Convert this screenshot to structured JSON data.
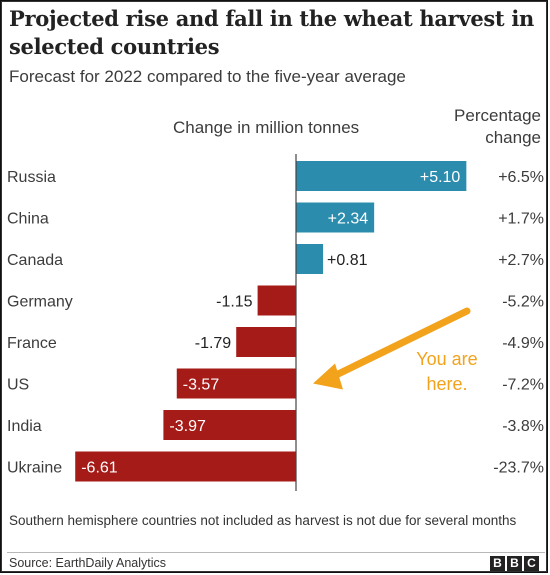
{
  "chart_data": {
    "type": "bar",
    "orientation": "horizontal",
    "title": "Projected rise and fall in the wheat harvest in selected countries",
    "subtitle": "Forecast for 2022 compared to the five-year average",
    "xlabel": "Change in million tonnes",
    "percentage_header": "Percentage change",
    "categories": [
      "Russia",
      "China",
      "Canada",
      "Germany",
      "France",
      "US",
      "India",
      "Ukraine"
    ],
    "values": [
      5.1,
      2.34,
      0.81,
      -1.15,
      -1.79,
      -3.57,
      -3.97,
      -6.61
    ],
    "value_labels": [
      "+5.10",
      "+2.34",
      "+0.81",
      "-1.15",
      "-1.79",
      "-3.57",
      "-3.97",
      "-6.61"
    ],
    "percentages": [
      "+6.5%",
      "+1.7%",
      "+2.7%",
      "-5.2%",
      "-4.9%",
      "-7.2%",
      "-3.8%",
      "-23.7%"
    ],
    "colors": {
      "positive": "#2b8cad",
      "negative": "#a51b17",
      "annotation": "#f2a21b"
    },
    "annotation": {
      "text_line1": "You are",
      "text_line2": "here.",
      "target": "US"
    },
    "footnote": "Southern hemisphere countries not included as harvest is not due for several months",
    "source": "Source: EarthDaily Analytics",
    "logo": [
      "B",
      "B",
      "C"
    ]
  }
}
